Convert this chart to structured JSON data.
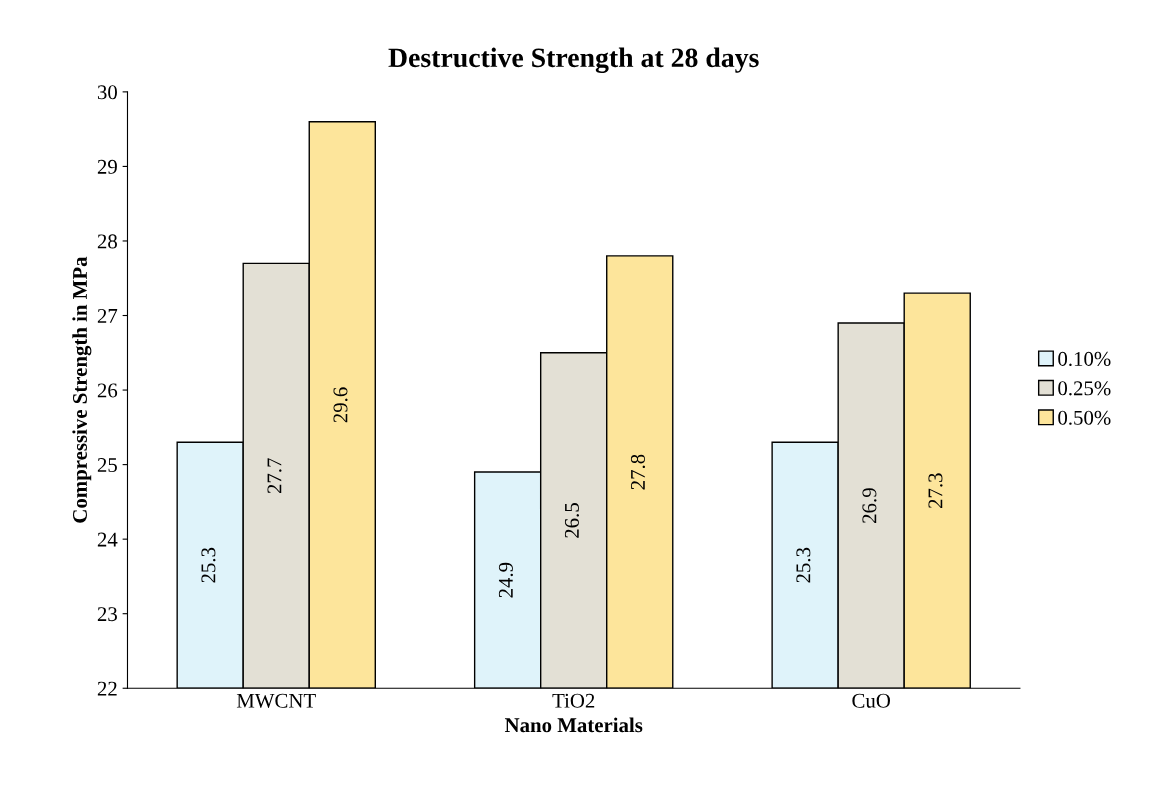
{
  "chart_data": {
    "type": "bar",
    "title": "Destructive Strength at 28 days",
    "xlabel": "Nano Materials",
    "ylabel": "Compressive Strength in MPa",
    "categories": [
      "MWCNT",
      "TiO2",
      "CuO"
    ],
    "series": [
      {
        "name": "0.10%",
        "color": "#dff3fa",
        "values": [
          25.3,
          24.9,
          25.3
        ]
      },
      {
        "name": "0.25%",
        "color": "#e3e0d5",
        "values": [
          27.7,
          26.5,
          26.9
        ]
      },
      {
        "name": "0.50%",
        "color": "#fde59b",
        "values": [
          29.6,
          27.8,
          27.3
        ]
      }
    ],
    "ylim": [
      22,
      30
    ],
    "yticks": [
      22,
      23,
      24,
      25,
      26,
      27,
      28,
      29,
      30
    ],
    "grid": false,
    "legend": "right",
    "data_labels": true
  }
}
